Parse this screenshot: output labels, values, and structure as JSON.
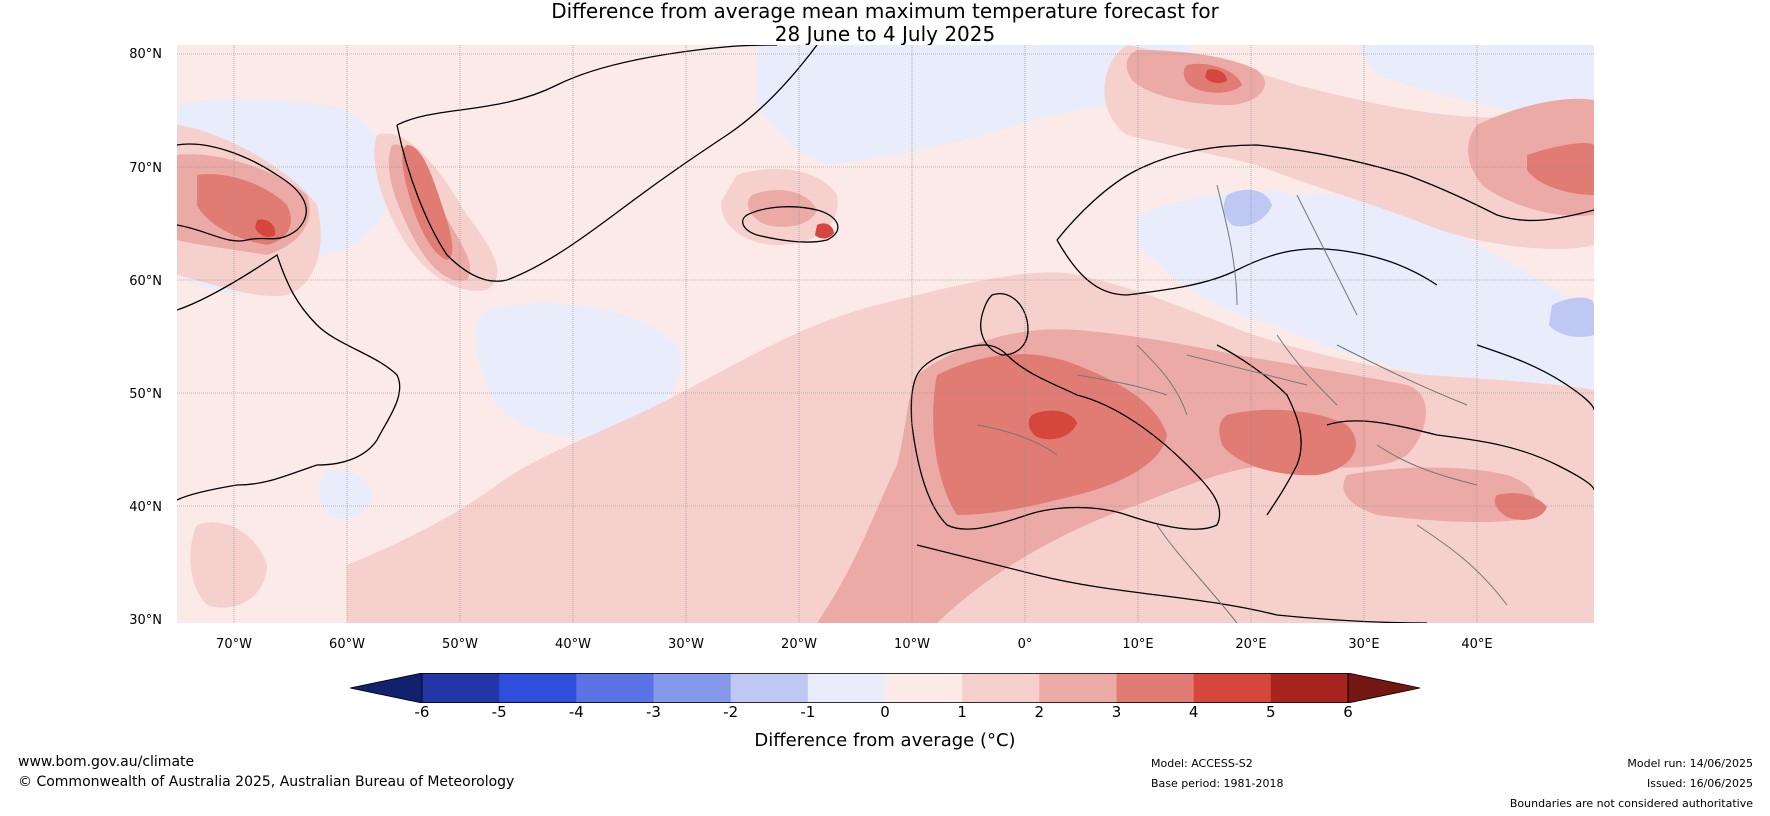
{
  "title": {
    "line1": "Difference from average mean maximum temperature forecast for",
    "line2": "28 June to 4 July 2025"
  },
  "axes": {
    "lat_labels": [
      "80°N",
      "70°N",
      "60°N",
      "50°N",
      "40°N",
      "30°N"
    ],
    "lon_labels": [
      "70°W",
      "60°W",
      "50°W",
      "40°W",
      "30°W",
      "20°W",
      "10°W",
      "0°",
      "10°E",
      "20°E",
      "30°E",
      "40°E"
    ]
  },
  "colorbar": {
    "ticks": [
      "-6",
      "-5",
      "-4",
      "-3",
      "-2",
      "-1",
      "0",
      "1",
      "2",
      "3",
      "4",
      "5",
      "6"
    ],
    "label": "Difference from average (°C)",
    "colors": [
      "#12216e",
      "#2336a8",
      "#2f4edb",
      "#5a72e3",
      "#8598ea",
      "#bfc7f3",
      "#e8ecfb",
      "#fbeae8",
      "#f5d0cd",
      "#ecaaa6",
      "#e17c74",
      "#d5463d",
      "#a8241e",
      "#741713"
    ]
  },
  "footer": {
    "website": "www.bom.gov.au/climate",
    "copyright": "© Commonwealth of Australia 2025, Australian Bureau of Meteorology",
    "model": "Model: ACCESS-S2",
    "base_period": "Base period: 1981-2018",
    "model_run": "Model run: 14/06/2025",
    "issued": "Issued: 16/06/2025",
    "disclaimer": "Boundaries are not considered authoritative"
  }
}
